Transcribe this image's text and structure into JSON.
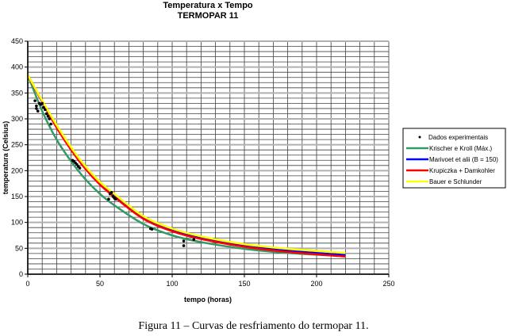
{
  "chart_data": {
    "type": "line",
    "title": "Temperatura x Tempo",
    "subtitle": "TERMOPAR 11",
    "xlabel": "tempo (horas)",
    "ylabel": "temperatura (Celsius)",
    "xlim": [
      0,
      250
    ],
    "ylim": [
      0,
      450
    ],
    "xticks": [
      0,
      50,
      100,
      150,
      200,
      250
    ],
    "yticks": [
      0,
      50,
      100,
      150,
      200,
      250,
      300,
      350,
      400,
      450
    ],
    "grid": true,
    "legend_position": "right",
    "scatter": {
      "name": "Dados experimentais",
      "color": "#000000",
      "points": [
        [
          5,
          335
        ],
        [
          6,
          325
        ],
        [
          6,
          320
        ],
        [
          7,
          315
        ],
        [
          8,
          330
        ],
        [
          9,
          328
        ],
        [
          10,
          330
        ],
        [
          11,
          322
        ],
        [
          12,
          318
        ],
        [
          13,
          310
        ],
        [
          14,
          305
        ],
        [
          15,
          300
        ],
        [
          16,
          290
        ],
        [
          31,
          220
        ],
        [
          32,
          218
        ],
        [
          33,
          215
        ],
        [
          34,
          212
        ],
        [
          35,
          208
        ],
        [
          36,
          205
        ],
        [
          56,
          145
        ],
        [
          57,
          155
        ],
        [
          58,
          158
        ],
        [
          59,
          150
        ],
        [
          60,
          147
        ],
        [
          61,
          145
        ],
        [
          85,
          88
        ],
        [
          86,
          87
        ],
        [
          108,
          55
        ],
        [
          108,
          64
        ],
        [
          115,
          67
        ]
      ]
    },
    "x": [
      0,
      10,
      20,
      30,
      40,
      50,
      60,
      80,
      100,
      120,
      150,
      180,
      220
    ],
    "series": [
      {
        "name": "Krischer e Kroll (Máx.)",
        "color": "#339966",
        "values": [
          385,
          315,
          260,
          218,
          183,
          155,
          133,
          97,
          75,
          62,
          49,
          41,
          35
        ]
      },
      {
        "name": "Marivoet et alii (B = 150)",
        "color": "#0000ff",
        "values": [
          385,
          333,
          285,
          242,
          205,
          175,
          152,
          110,
          86,
          71,
          56,
          46,
          37
        ]
      },
      {
        "name": "Krupiczka + Damkohler",
        "color": "#ff0000",
        "values": [
          385,
          333,
          283,
          240,
          203,
          173,
          149,
          107,
          83,
          68,
          53,
          43,
          34
        ]
      },
      {
        "name": "Bauer e Schlunder",
        "color": "#ffff00",
        "values": [
          385,
          335,
          288,
          245,
          208,
          178,
          155,
          112,
          88,
          73,
          58,
          49,
          41
        ]
      }
    ]
  },
  "caption": "Figura 11 – Curvas de resfriamento do termopar 11."
}
